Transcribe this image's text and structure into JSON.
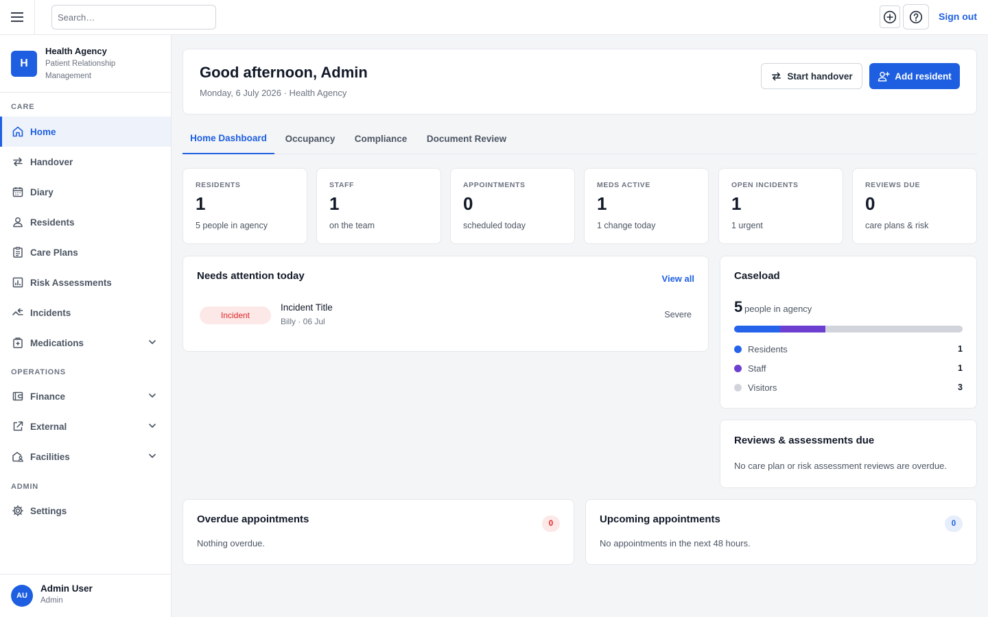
{
  "topbar": {
    "search_placeholder": "Search…",
    "sign_out": "Sign out",
    "icons": [
      "menu-icon",
      "plus-circle-icon",
      "help-icon"
    ]
  },
  "sidebar": {
    "brand": {
      "initial": "H",
      "name": "Health Agency",
      "subtitle": "Patient Relationship Management"
    },
    "sections": {
      "care": "CARE",
      "operations": "OPERATIONS",
      "admin": "ADMIN"
    },
    "items": [
      {
        "label": "Home",
        "icon": "home-icon",
        "active": true
      },
      {
        "label": "Handover",
        "icon": "swap-arrows-icon"
      },
      {
        "label": "Diary",
        "icon": "calendar-icon"
      },
      {
        "label": "Residents",
        "icon": "person-icon"
      },
      {
        "label": "Care Plans",
        "icon": "clipboard-icon"
      },
      {
        "label": "Risk Assessments",
        "icon": "bar-chart-icon"
      },
      {
        "label": "Incidents",
        "icon": "incident-arrows-icon"
      },
      {
        "label": "Medications",
        "icon": "medical-box-icon",
        "expandable": true
      },
      {
        "label": "Finance",
        "icon": "wallet-icon",
        "expandable": true
      },
      {
        "label": "External",
        "icon": "external-link-icon",
        "expandable": true
      },
      {
        "label": "Facilities",
        "icon": "building-user-icon",
        "expandable": true
      },
      {
        "label": "Settings",
        "icon": "gear-icon"
      }
    ],
    "user": {
      "initials": "AU",
      "name": "Admin User",
      "role": "Admin"
    }
  },
  "header": {
    "greeting": "Good afternoon, Admin",
    "subtitle": "Monday, 6 July 2026 · Health Agency",
    "start_handover": "Start handover",
    "add_resident": "Add resident"
  },
  "tabs": [
    {
      "label": "Home Dashboard",
      "active": true
    },
    {
      "label": "Occupancy"
    },
    {
      "label": "Compliance"
    },
    {
      "label": "Document Review"
    }
  ],
  "stats": [
    {
      "label": "RESIDENTS",
      "value": "1",
      "sub": "5 people in agency"
    },
    {
      "label": "STAFF",
      "value": "1",
      "sub": "on the team"
    },
    {
      "label": "APPOINTMENTS",
      "value": "0",
      "sub": "scheduled today"
    },
    {
      "label": "MEDS ACTIVE",
      "value": "1",
      "sub": "1 change today"
    },
    {
      "label": "OPEN INCIDENTS",
      "value": "1",
      "sub": "1 urgent"
    },
    {
      "label": "REVIEWS DUE",
      "value": "0",
      "sub": "care plans & risk"
    }
  ],
  "attention": {
    "title": "Needs attention today",
    "view_all": "View all",
    "items": [
      {
        "tag": "Incident",
        "title": "Incident Title",
        "meta": "Billy · 06 Jul",
        "severity": "Severe"
      }
    ]
  },
  "caseload": {
    "title": "Caseload",
    "total": "5",
    "total_suffix": "people in agency",
    "segments": [
      {
        "name": "Residents",
        "value": 1,
        "color": "#2563eb"
      },
      {
        "name": "Staff",
        "value": 1,
        "color": "#6d3fd0"
      },
      {
        "name": "Visitors",
        "value": 3,
        "color": "#d1d5db"
      }
    ]
  },
  "reviews": {
    "title": "Reviews & assessments due",
    "text": "No care plan or risk assessment reviews are overdue."
  },
  "overdue": {
    "title": "Overdue appointments",
    "count": "0",
    "text": "Nothing overdue."
  },
  "upcoming": {
    "title": "Upcoming appointments",
    "count": "0",
    "text": "No appointments in the next 48 hours."
  },
  "colors": {
    "accent": "#1d5fe0",
    "danger": "#dc2626",
    "danger_bg": "#fde8e8"
  }
}
